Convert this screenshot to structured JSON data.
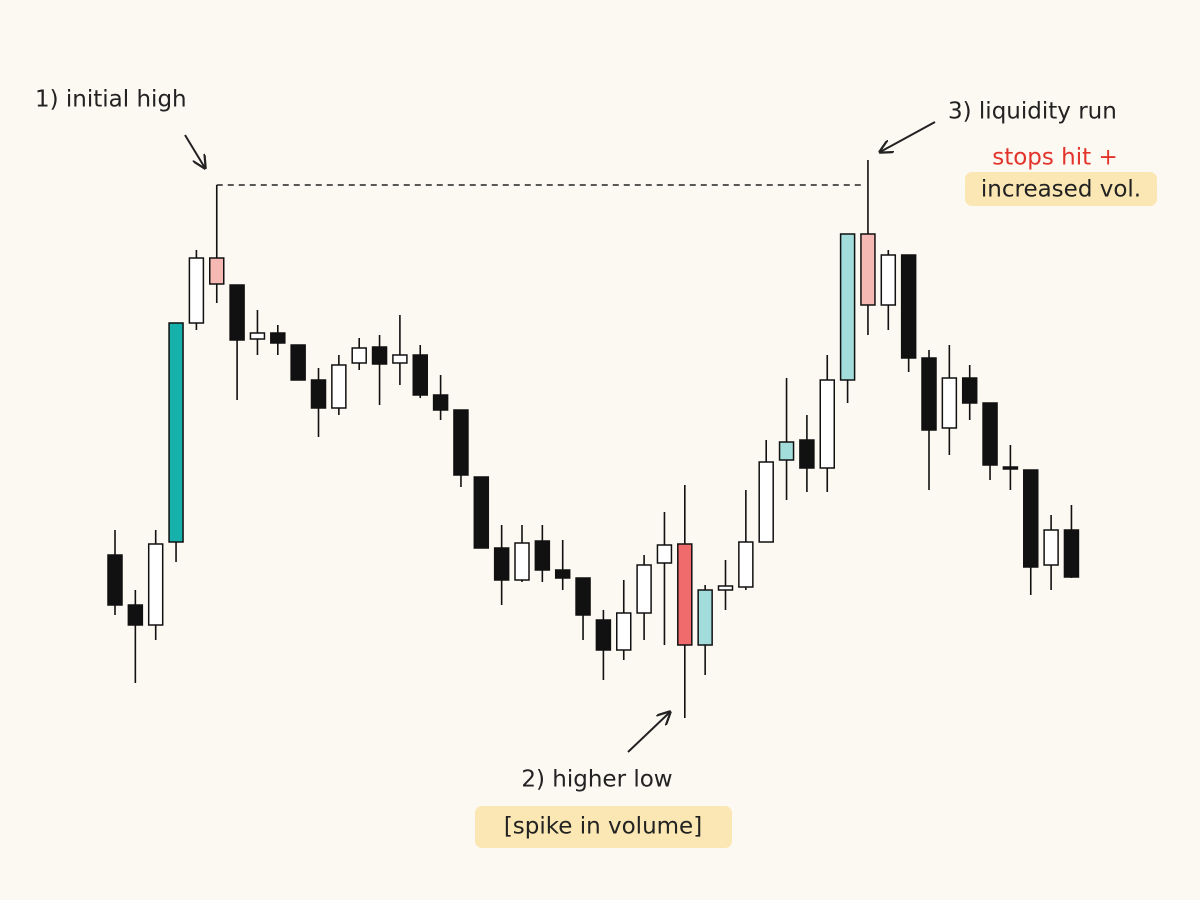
{
  "chart_data": {
    "type": "candlestick",
    "ylim": [
      0,
      90
    ],
    "annotations": [
      "1) initial high",
      "3) liquidity run",
      "stops hit +",
      "increased vol.",
      "2) higher low",
      "[spike in volume]"
    ],
    "candles": [
      {
        "open": 34.5,
        "high": 37,
        "low": 28.5,
        "close": 29.5,
        "color": "#111111"
      },
      {
        "open": 29.5,
        "high": 31,
        "low": 21.7,
        "close": 27.5,
        "color": "#111111"
      },
      {
        "open": 27.5,
        "high": 37,
        "low": 26,
        "close": 35.6,
        "color": "#ffffff"
      },
      {
        "open": 35.8,
        "high": 57.7,
        "low": 33.8,
        "close": 57.7,
        "color": "#17b1ab"
      },
      {
        "open": 57.7,
        "high": 65,
        "low": 57,
        "close": 64.2,
        "color": "#ffffff"
      },
      {
        "open": 64.2,
        "high": 71.5,
        "low": 59.7,
        "close": 61.6,
        "color": "#f6b8b3"
      },
      {
        "open": 61.5,
        "high": 61.5,
        "low": 50,
        "close": 56,
        "color": "#111111"
      },
      {
        "open": 56.1,
        "high": 59,
        "low": 54.5,
        "close": 56.7,
        "color": "#ffffff"
      },
      {
        "open": 56.7,
        "high": 57.5,
        "low": 54.5,
        "close": 55.7,
        "color": "#111111"
      },
      {
        "open": 55.5,
        "high": 55.5,
        "low": 52,
        "close": 52,
        "color": "#111111"
      },
      {
        "open": 52,
        "high": 53.2,
        "low": 46.3,
        "close": 49.2,
        "color": "#111111"
      },
      {
        "open": 49.2,
        "high": 54.5,
        "low": 48.5,
        "close": 53.5,
        "color": "#ffffff"
      },
      {
        "open": 53.7,
        "high": 56.2,
        "low": 53,
        "close": 55.2,
        "color": "#ffffff"
      },
      {
        "open": 55.3,
        "high": 56.5,
        "low": 49.5,
        "close": 53.6,
        "color": "#111111"
      },
      {
        "open": 53.7,
        "high": 58.5,
        "low": 51.5,
        "close": 54.5,
        "color": "#ffffff"
      },
      {
        "open": 54.5,
        "high": 55.5,
        "low": 50.2,
        "close": 50.5,
        "color": "#111111"
      },
      {
        "open": 50.5,
        "high": 52.5,
        "low": 48,
        "close": 49,
        "color": "#111111"
      },
      {
        "open": 49,
        "high": 49,
        "low": 41.3,
        "close": 42.5,
        "color": "#111111"
      },
      {
        "open": 42.3,
        "high": 42.3,
        "low": 35.2,
        "close": 35.2,
        "color": "#111111"
      },
      {
        "open": 35.2,
        "high": 37.5,
        "low": 29.5,
        "close": 32,
        "color": "#111111"
      },
      {
        "open": 32,
        "high": 37.5,
        "low": 31.8,
        "close": 35.7,
        "color": "#ffffff"
      },
      {
        "open": 35.9,
        "high": 37.5,
        "low": 31.8,
        "close": 33,
        "color": "#111111"
      },
      {
        "open": 33,
        "high": 36,
        "low": 31,
        "close": 32.2,
        "color": "#111111"
      },
      {
        "open": 32.2,
        "high": 32.2,
        "low": 26,
        "close": 28.5,
        "color": "#111111"
      },
      {
        "open": 28,
        "high": 29,
        "low": 22,
        "close": 25,
        "color": "#111111"
      },
      {
        "open": 25,
        "high": 32,
        "low": 24,
        "close": 28.7,
        "color": "#ffffff"
      },
      {
        "open": 28.7,
        "high": 34.5,
        "low": 26,
        "close": 33.5,
        "color": "#ffffff"
      },
      {
        "open": 33.7,
        "high": 38.8,
        "low": 25.5,
        "close": 35.5,
        "color": "#ffffff"
      },
      {
        "open": 35.6,
        "high": 41.5,
        "low": 18.2,
        "close": 25.5,
        "color": "#f06b6b"
      },
      {
        "open": 25.5,
        "high": 31.5,
        "low": 22.5,
        "close": 31,
        "color": "#a2dcdb"
      },
      {
        "open": 31,
        "high": 34,
        "low": 29,
        "close": 31.4,
        "color": "#ffffff"
      },
      {
        "open": 31.3,
        "high": 41,
        "low": 31,
        "close": 35.8,
        "color": "#ffffff"
      },
      {
        "open": 35.8,
        "high": 46,
        "low": 35.8,
        "close": 43.8,
        "color": "#ffffff"
      },
      {
        "open": 44,
        "high": 52.2,
        "low": 40,
        "close": 45.8,
        "color": "#a2dcdb"
      },
      {
        "open": 46,
        "high": 48.5,
        "low": 40.8,
        "close": 43.2,
        "color": "#111111"
      },
      {
        "open": 43.2,
        "high": 54.5,
        "low": 40.8,
        "close": 52,
        "color": "#ffffff"
      },
      {
        "open": 52,
        "high": 66.6,
        "low": 49.7,
        "close": 66.6,
        "color": "#a2dcdb"
      },
      {
        "open": 66.6,
        "high": 74,
        "low": 56.5,
        "close": 59.5,
        "color": "#f6b8b3"
      },
      {
        "open": 59.5,
        "high": 65,
        "low": 57,
        "close": 64.5,
        "color": "#ffffff"
      },
      {
        "open": 64.5,
        "high": 64.5,
        "low": 52.8,
        "close": 54.2,
        "color": "#111111"
      },
      {
        "open": 54.2,
        "high": 55,
        "low": 41,
        "close": 47,
        "color": "#111111"
      },
      {
        "open": 47.2,
        "high": 55.5,
        "low": 44.5,
        "close": 52.2,
        "color": "#ffffff"
      },
      {
        "open": 52.2,
        "high": 53.5,
        "low": 48,
        "close": 49.7,
        "color": "#111111"
      },
      {
        "open": 49.7,
        "high": 49.7,
        "low": 42,
        "close": 43.5,
        "color": "#111111"
      },
      {
        "open": 43.3,
        "high": 45.5,
        "low": 41,
        "close": 43.1,
        "color": "#111111"
      },
      {
        "open": 43,
        "high": 43,
        "low": 30.5,
        "close": 33.3,
        "color": "#111111"
      },
      {
        "open": 33.5,
        "high": 38.5,
        "low": 31,
        "close": 37,
        "color": "#ffffff"
      },
      {
        "open": 37,
        "high": 39.5,
        "low": 32.2,
        "close": 32.3,
        "color": "#111111"
      }
    ]
  }
}
